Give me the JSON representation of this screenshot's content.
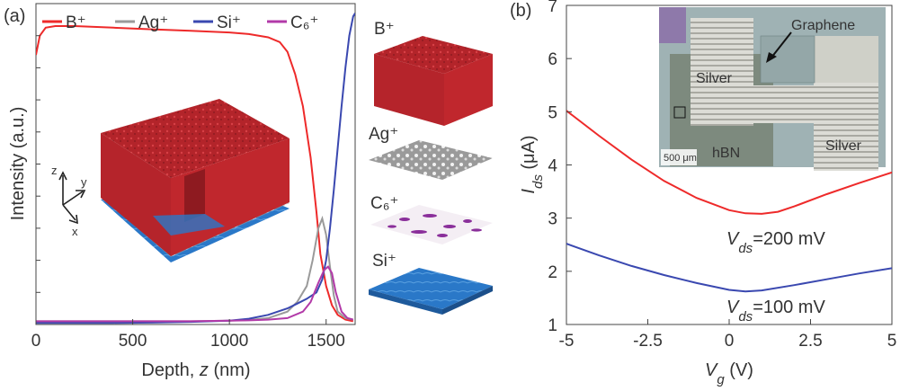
{
  "panel_a": {
    "label": "(a)",
    "layer_labels": [
      "B⁺",
      "Ag⁺",
      "C₆⁺",
      "Si⁺"
    ],
    "axes_labels": [
      "z",
      "y",
      "x"
    ]
  },
  "panel_b": {
    "label": "(b)",
    "inset": {
      "labels": [
        "Graphene",
        "Silver",
        "Silver",
        "hBN",
        "500 μm"
      ]
    },
    "curve_labels": [
      "V_ds=200 mV",
      "V_ds=100 mV"
    ]
  },
  "colors": {
    "B": "#ee2a2a",
    "Ag": "#9a9a9a",
    "Si": "#3a48b0",
    "C6": "#b23aa8",
    "block_red": "#c0272d",
    "silicon_blue": "#2a78c8"
  },
  "chart_data": [
    {
      "type": "line",
      "xlabel": "Depth, z (nm)",
      "ylabel": "Intensity (a.u.)",
      "xlim": [
        0,
        1650
      ],
      "ylim": [
        0,
        1
      ],
      "xticks": [
        0,
        500,
        1000,
        1500
      ],
      "legend": {
        "placement": "top",
        "entries": [
          "B⁺",
          "Ag⁺",
          "Si⁺",
          "C₆⁺"
        ]
      },
      "series": [
        {
          "name": "B⁺",
          "color": "#ee2a2a",
          "x": [
            0,
            20,
            50,
            100,
            200,
            400,
            600,
            800,
            1000,
            1100,
            1200,
            1260,
            1300,
            1340,
            1380,
            1420,
            1450,
            1470,
            1500,
            1530,
            1560,
            1600,
            1640
          ],
          "y": [
            0.84,
            0.9,
            0.925,
            0.93,
            0.93,
            0.925,
            0.92,
            0.915,
            0.91,
            0.905,
            0.895,
            0.88,
            0.85,
            0.78,
            0.68,
            0.52,
            0.35,
            0.22,
            0.12,
            0.06,
            0.03,
            0.015,
            0.01
          ]
        },
        {
          "name": "Ag⁺",
          "color": "#9a9a9a",
          "x": [
            0,
            200,
            400,
            600,
            800,
            1000,
            1100,
            1200,
            1300,
            1350,
            1400,
            1430,
            1460,
            1480,
            1500,
            1520,
            1540,
            1560,
            1600,
            1640
          ],
          "y": [
            0.01,
            0.01,
            0.01,
            0.01,
            0.01,
            0.012,
            0.014,
            0.02,
            0.04,
            0.07,
            0.12,
            0.2,
            0.3,
            0.33,
            0.28,
            0.18,
            0.09,
            0.04,
            0.02,
            0.015
          ]
        },
        {
          "name": "Si⁺",
          "color": "#3a48b0",
          "x": [
            0,
            200,
            400,
            600,
            800,
            1000,
            1100,
            1200,
            1250,
            1300,
            1350,
            1400,
            1450,
            1480,
            1500,
            1520,
            1540,
            1560,
            1580,
            1600,
            1620,
            1640,
            1650
          ],
          "y": [
            0.005,
            0.005,
            0.005,
            0.006,
            0.008,
            0.012,
            0.018,
            0.03,
            0.04,
            0.05,
            0.065,
            0.08,
            0.1,
            0.14,
            0.2,
            0.3,
            0.42,
            0.55,
            0.68,
            0.8,
            0.9,
            0.96,
            0.97
          ]
        },
        {
          "name": "C₆⁺",
          "color": "#b23aa8",
          "x": [
            0,
            200,
            400,
            600,
            800,
            1000,
            1100,
            1200,
            1300,
            1380,
            1420,
            1460,
            1490,
            1510,
            1530,
            1550,
            1580,
            1610,
            1640
          ],
          "y": [
            0.01,
            0.01,
            0.01,
            0.01,
            0.01,
            0.012,
            0.013,
            0.015,
            0.02,
            0.04,
            0.07,
            0.13,
            0.17,
            0.18,
            0.16,
            0.1,
            0.04,
            0.02,
            0.015
          ]
        }
      ]
    },
    {
      "type": "line",
      "xlabel": "V_g (V)",
      "ylabel": "I_ds (μA)",
      "xlim": [
        -5,
        5
      ],
      "ylim": [
        1,
        7
      ],
      "xticks": [
        -5,
        -2.5,
        0,
        2.5,
        5
      ],
      "xtick_labels": [
        "-5",
        "-2.5",
        "0",
        "2.5",
        "5"
      ],
      "yticks": [
        1,
        2,
        3,
        4,
        5,
        6,
        7
      ],
      "series": [
        {
          "name": "V_ds=200 mV",
          "color": "#ee2a2a",
          "x": [
            -5,
            -4,
            -3,
            -2,
            -1,
            0,
            0.5,
            1,
            1.5,
            2,
            3,
            4,
            5
          ],
          "y": [
            5.02,
            4.55,
            4.1,
            3.7,
            3.38,
            3.15,
            3.09,
            3.08,
            3.12,
            3.22,
            3.45,
            3.66,
            3.86
          ]
        },
        {
          "name": "V_ds=100 mV",
          "color": "#3a48b0",
          "x": [
            -5,
            -4,
            -3,
            -2,
            -1,
            0,
            0.5,
            1,
            2,
            3,
            4,
            5
          ],
          "y": [
            2.52,
            2.3,
            2.1,
            1.93,
            1.78,
            1.65,
            1.62,
            1.64,
            1.74,
            1.85,
            1.96,
            2.06
          ]
        }
      ]
    }
  ]
}
